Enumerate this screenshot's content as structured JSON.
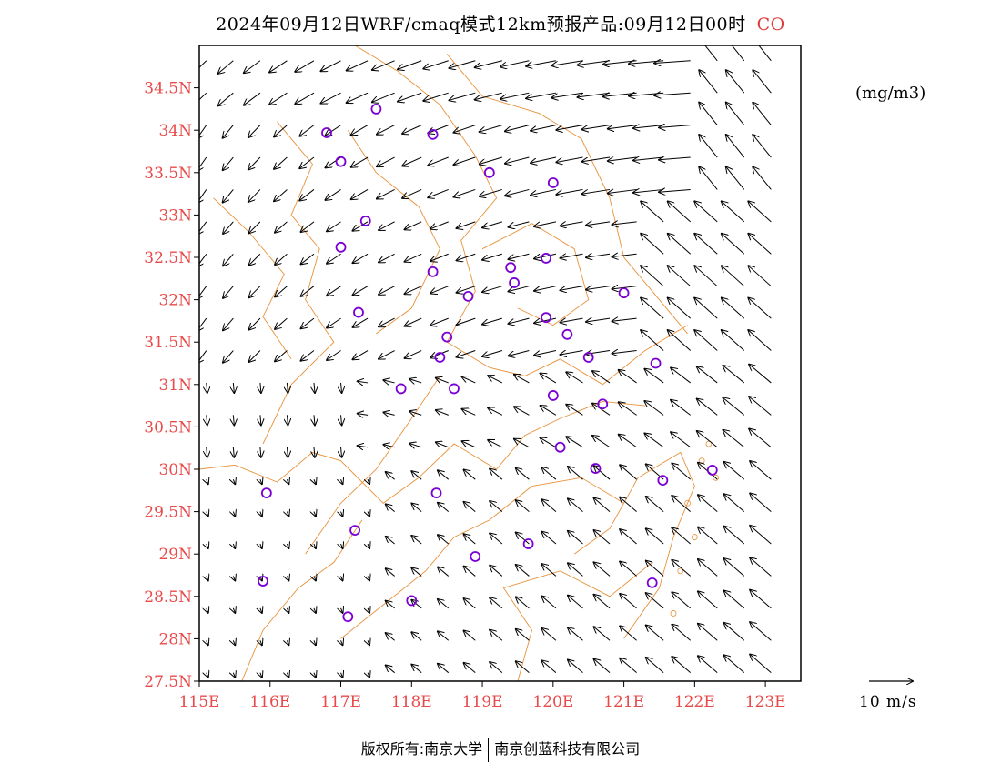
{
  "title": {
    "main": "2024年09月12日WRF/cmaq模式12km预报产品:09月12日00时",
    "species": "CO"
  },
  "units": "(mg/m3)",
  "vector_legend": "10 m/s",
  "footer": {
    "left": "版权所有:南京大学",
    "right": "南京创蓝科技有限公司"
  },
  "colors": {
    "tick_labels": "#e84a4a",
    "boundaries": "#e8913a",
    "markers": "#7b00d6",
    "arrows": "#000000"
  },
  "map": {
    "lon_range": [
      115.0,
      123.5
    ],
    "lat_range": [
      27.5,
      35.0
    ],
    "x_ticks": [
      "115E",
      "116E",
      "117E",
      "118E",
      "119E",
      "120E",
      "121E",
      "122E",
      "123E"
    ],
    "y_ticks": [
      "27.5N",
      "28N",
      "28.5N",
      "29N",
      "29.5N",
      "30N",
      "30.5N",
      "31N",
      "31.5N",
      "32N",
      "32.5N",
      "33N",
      "33.5N",
      "34N",
      "34.5N"
    ],
    "stations": [
      [
        117.5,
        34.25
      ],
      [
        116.8,
        33.97
      ],
      [
        117.0,
        33.63
      ],
      [
        118.3,
        33.95
      ],
      [
        119.1,
        33.5
      ],
      [
        120.0,
        33.38
      ],
      [
        117.35,
        32.93
      ],
      [
        117.0,
        32.62
      ],
      [
        118.3,
        32.33
      ],
      [
        118.8,
        32.04
      ],
      [
        119.4,
        32.38
      ],
      [
        119.45,
        32.2
      ],
      [
        119.9,
        32.49
      ],
      [
        117.25,
        31.85
      ],
      [
        118.5,
        31.56
      ],
      [
        118.4,
        31.32
      ],
      [
        119.9,
        31.79
      ],
      [
        120.2,
        31.59
      ],
      [
        120.5,
        31.32
      ],
      [
        121.0,
        32.08
      ],
      [
        121.45,
        31.25
      ],
      [
        117.85,
        30.95
      ],
      [
        118.6,
        30.95
      ],
      [
        120.0,
        30.87
      ],
      [
        120.7,
        30.77
      ],
      [
        120.1,
        30.26
      ],
      [
        120.6,
        30.01
      ],
      [
        121.55,
        29.87
      ],
      [
        122.25,
        29.99
      ],
      [
        115.95,
        29.72
      ],
      [
        118.35,
        29.72
      ],
      [
        117.2,
        29.28
      ],
      [
        119.65,
        29.12
      ],
      [
        118.9,
        28.97
      ],
      [
        115.9,
        28.68
      ],
      [
        118.0,
        28.45
      ],
      [
        117.1,
        28.26
      ],
      [
        121.4,
        28.66
      ]
    ]
  }
}
